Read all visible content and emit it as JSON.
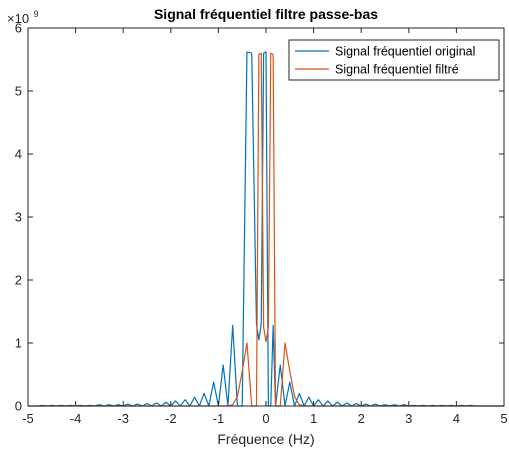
{
  "chart_data": {
    "type": "line",
    "title": "Signal fréquentiel filtre passe-bas",
    "xlabel": "Fréquence (Hz)",
    "ylabel": "",
    "xlim": [
      -5,
      5
    ],
    "ylim": [
      0,
      6
    ],
    "y_scale_exponent_label": {
      "base": "×10",
      "exponent": "9"
    },
    "x_ticks": [
      {
        "value": -5,
        "label": "-5"
      },
      {
        "value": -4,
        "label": "-4"
      },
      {
        "value": -3,
        "label": "-3"
      },
      {
        "value": -2,
        "label": "-2"
      },
      {
        "value": -1,
        "label": "-1"
      },
      {
        "value": 0,
        "label": "0"
      },
      {
        "value": 1,
        "label": "1"
      },
      {
        "value": 2,
        "label": "2"
      },
      {
        "value": 3,
        "label": "3"
      },
      {
        "value": 4,
        "label": "4"
      },
      {
        "value": 5,
        "label": "5"
      }
    ],
    "y_ticks": [
      {
        "value": 0,
        "label": "0"
      },
      {
        "value": 1,
        "label": "1"
      },
      {
        "value": 2,
        "label": "2"
      },
      {
        "value": 3,
        "label": "3"
      },
      {
        "value": 4,
        "label": "4"
      },
      {
        "value": 5,
        "label": "5"
      },
      {
        "value": 6,
        "label": "6"
      }
    ],
    "grid": false,
    "legend_position": "top-right",
    "series": [
      {
        "name": "Signal fréquentiel original",
        "color": "#0072BD",
        "x": [
          -5,
          -4.8,
          -4.7,
          -4.6,
          -4.5,
          -4.4,
          -4.3,
          -4.2,
          -4.1,
          -4.0,
          -3.9,
          -3.8,
          -3.7,
          -3.6,
          -3.5,
          -3.4,
          -3.3,
          -3.2,
          -3.1,
          -3.0,
          -2.9,
          -2.8,
          -2.7,
          -2.6,
          -2.5,
          -2.4,
          -2.3,
          -2.2,
          -2.1,
          -2.0,
          -1.9,
          -1.8,
          -1.7,
          -1.6,
          -1.5,
          -1.4,
          -1.3,
          -1.2,
          -1.1,
          -1.0,
          -0.9,
          -0.8,
          -0.7,
          -0.6,
          -0.5,
          -0.4,
          -0.3,
          -0.2,
          -0.15,
          -0.1,
          -0.05,
          0.0,
          0.05,
          0.1,
          0.15,
          0.2,
          0.3,
          0.4,
          0.5,
          0.6,
          0.7,
          0.8,
          0.9,
          1.0,
          1.1,
          1.2,
          1.3,
          1.4,
          1.5,
          1.6,
          1.7,
          1.8,
          1.9,
          2.0,
          2.1,
          2.2,
          2.3,
          2.4,
          2.5,
          2.6,
          2.7,
          2.8,
          2.9,
          3.0,
          3.1,
          3.2,
          3.3,
          3.4,
          3.5,
          3.6,
          3.7,
          3.8,
          3.9,
          4.0,
          4.1,
          4.2,
          4.3,
          4.4,
          4.5,
          4.6,
          4.7,
          4.8,
          5.0
        ],
        "y": [
          0,
          0,
          0.01,
          0,
          0.01,
          0,
          0.01,
          0,
          0.01,
          0,
          0.01,
          0,
          0.01,
          0,
          0.02,
          0,
          0.02,
          0,
          0.02,
          0,
          0.03,
          0,
          0.03,
          0,
          0.04,
          0,
          0.05,
          0,
          0.06,
          0,
          0.08,
          0,
          0.1,
          0,
          0.14,
          0,
          0.2,
          0,
          0.38,
          0,
          0.65,
          0,
          1.28,
          0,
          0,
          5.62,
          5.6,
          1.3,
          1.05,
          1.3,
          5.6,
          5.62,
          0,
          0,
          1.28,
          0,
          0.65,
          0,
          0.38,
          0,
          0.2,
          0,
          0.14,
          0,
          0.1,
          0,
          0.08,
          0,
          0.06,
          0,
          0.05,
          0,
          0.04,
          0,
          0.03,
          0,
          0.03,
          0,
          0.02,
          0,
          0.02,
          0,
          0.02,
          0,
          0.01,
          0,
          0.01,
          0,
          0.01,
          0,
          0.01,
          0,
          0.01,
          0,
          0.01,
          0,
          0.01,
          0,
          0,
          0,
          0,
          0,
          0
        ]
      },
      {
        "name": "Signal fréquentiel filtré",
        "color": "#D95319",
        "x": [
          -5,
          -4.0,
          -3.0,
          -2.0,
          -1.2,
          -0.8,
          -0.7,
          -0.6,
          -0.5,
          -0.4,
          -0.3,
          -0.2,
          -0.15,
          -0.1,
          -0.05,
          0.0,
          0.05,
          0.1,
          0.15,
          0.2,
          0.3,
          0.4,
          0.5,
          0.6,
          0.7,
          0.8,
          1.2,
          2.0,
          3.0,
          4.0,
          5.0
        ],
        "y": [
          0,
          0,
          0,
          0,
          0,
          0,
          0.02,
          0.15,
          0.55,
          1.0,
          0,
          0,
          5.58,
          5.6,
          1.25,
          1.02,
          1.25,
          5.6,
          5.58,
          0,
          0,
          1.0,
          0.55,
          0.15,
          0.02,
          0,
          0,
          0,
          0,
          0,
          0
        ]
      }
    ]
  }
}
